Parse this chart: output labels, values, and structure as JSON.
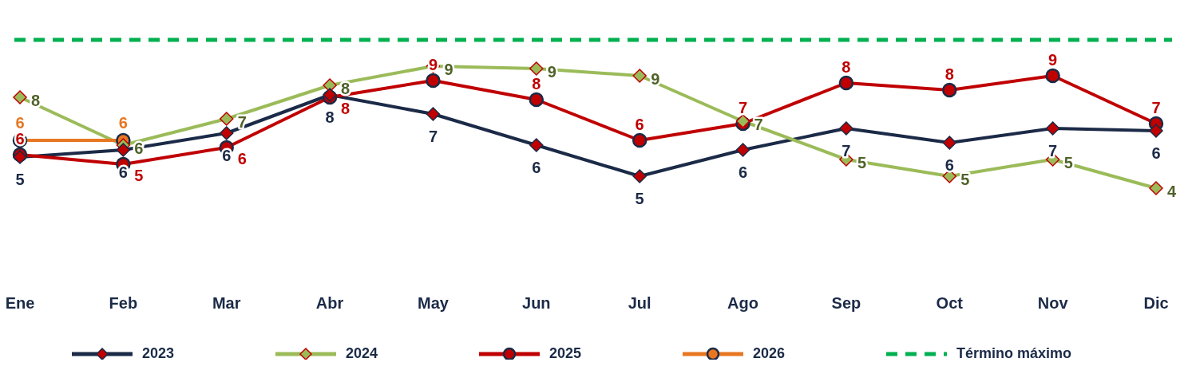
{
  "chart_data": {
    "type": "line",
    "categories": [
      "Ene",
      "Feb",
      "Mar",
      "Abr",
      "May",
      "Jun",
      "Jul",
      "Ago",
      "Sep",
      "Oct",
      "Nov",
      "Dic"
    ],
    "legend": "bottom",
    "tick_labels": "x",
    "line_style": "solid",
    "series": [
      {
        "name": "2023",
        "color": "#1b2a47",
        "marker": "diamond",
        "values": [
          5.4,
          5.7,
          6.4,
          8.0,
          7.2,
          5.9,
          4.6,
          5.7,
          6.6,
          6.0,
          6.6,
          6.5
        ],
        "value_labels": [
          "5",
          "6",
          "6",
          "8",
          "7",
          "6",
          "5",
          "6",
          "7",
          "6",
          "7",
          "6"
        ]
      },
      {
        "name": "2024",
        "color": "#9bbb59",
        "marker": "diamond",
        "values": [
          7.9,
          5.9,
          7.0,
          8.4,
          9.2,
          9.1,
          8.8,
          6.9,
          5.3,
          4.6,
          5.3,
          4.1
        ],
        "value_labels": [
          "8",
          "6",
          "7",
          "8",
          "9",
          "9",
          "9",
          "7",
          "5",
          "5",
          "5",
          "4"
        ]
      },
      {
        "name": "2025",
        "color": "#c00000",
        "marker": "circle",
        "values": [
          5.5,
          5.1,
          5.8,
          7.9,
          8.6,
          7.8,
          6.1,
          6.8,
          8.5,
          8.2,
          8.8,
          6.8
        ],
        "value_labels": [
          "6",
          "5",
          "6",
          "8",
          "9",
          "8",
          "6",
          "7",
          "8",
          "8",
          "9",
          "7"
        ]
      },
      {
        "name": "2026",
        "color": "#e87722",
        "marker": "circle",
        "values": [
          6.1,
          6.1,
          null,
          null,
          null,
          null,
          null,
          null,
          null,
          null,
          null,
          null
        ],
        "value_labels": [
          "6",
          "6",
          null,
          null,
          null,
          null,
          null,
          null,
          null,
          null,
          null,
          null
        ]
      }
    ],
    "ref_lines": [
      {
        "axis": "y",
        "value": 10.3,
        "label": "Término máximo",
        "color": "#00b050",
        "line_style": "dashed"
      }
    ]
  }
}
